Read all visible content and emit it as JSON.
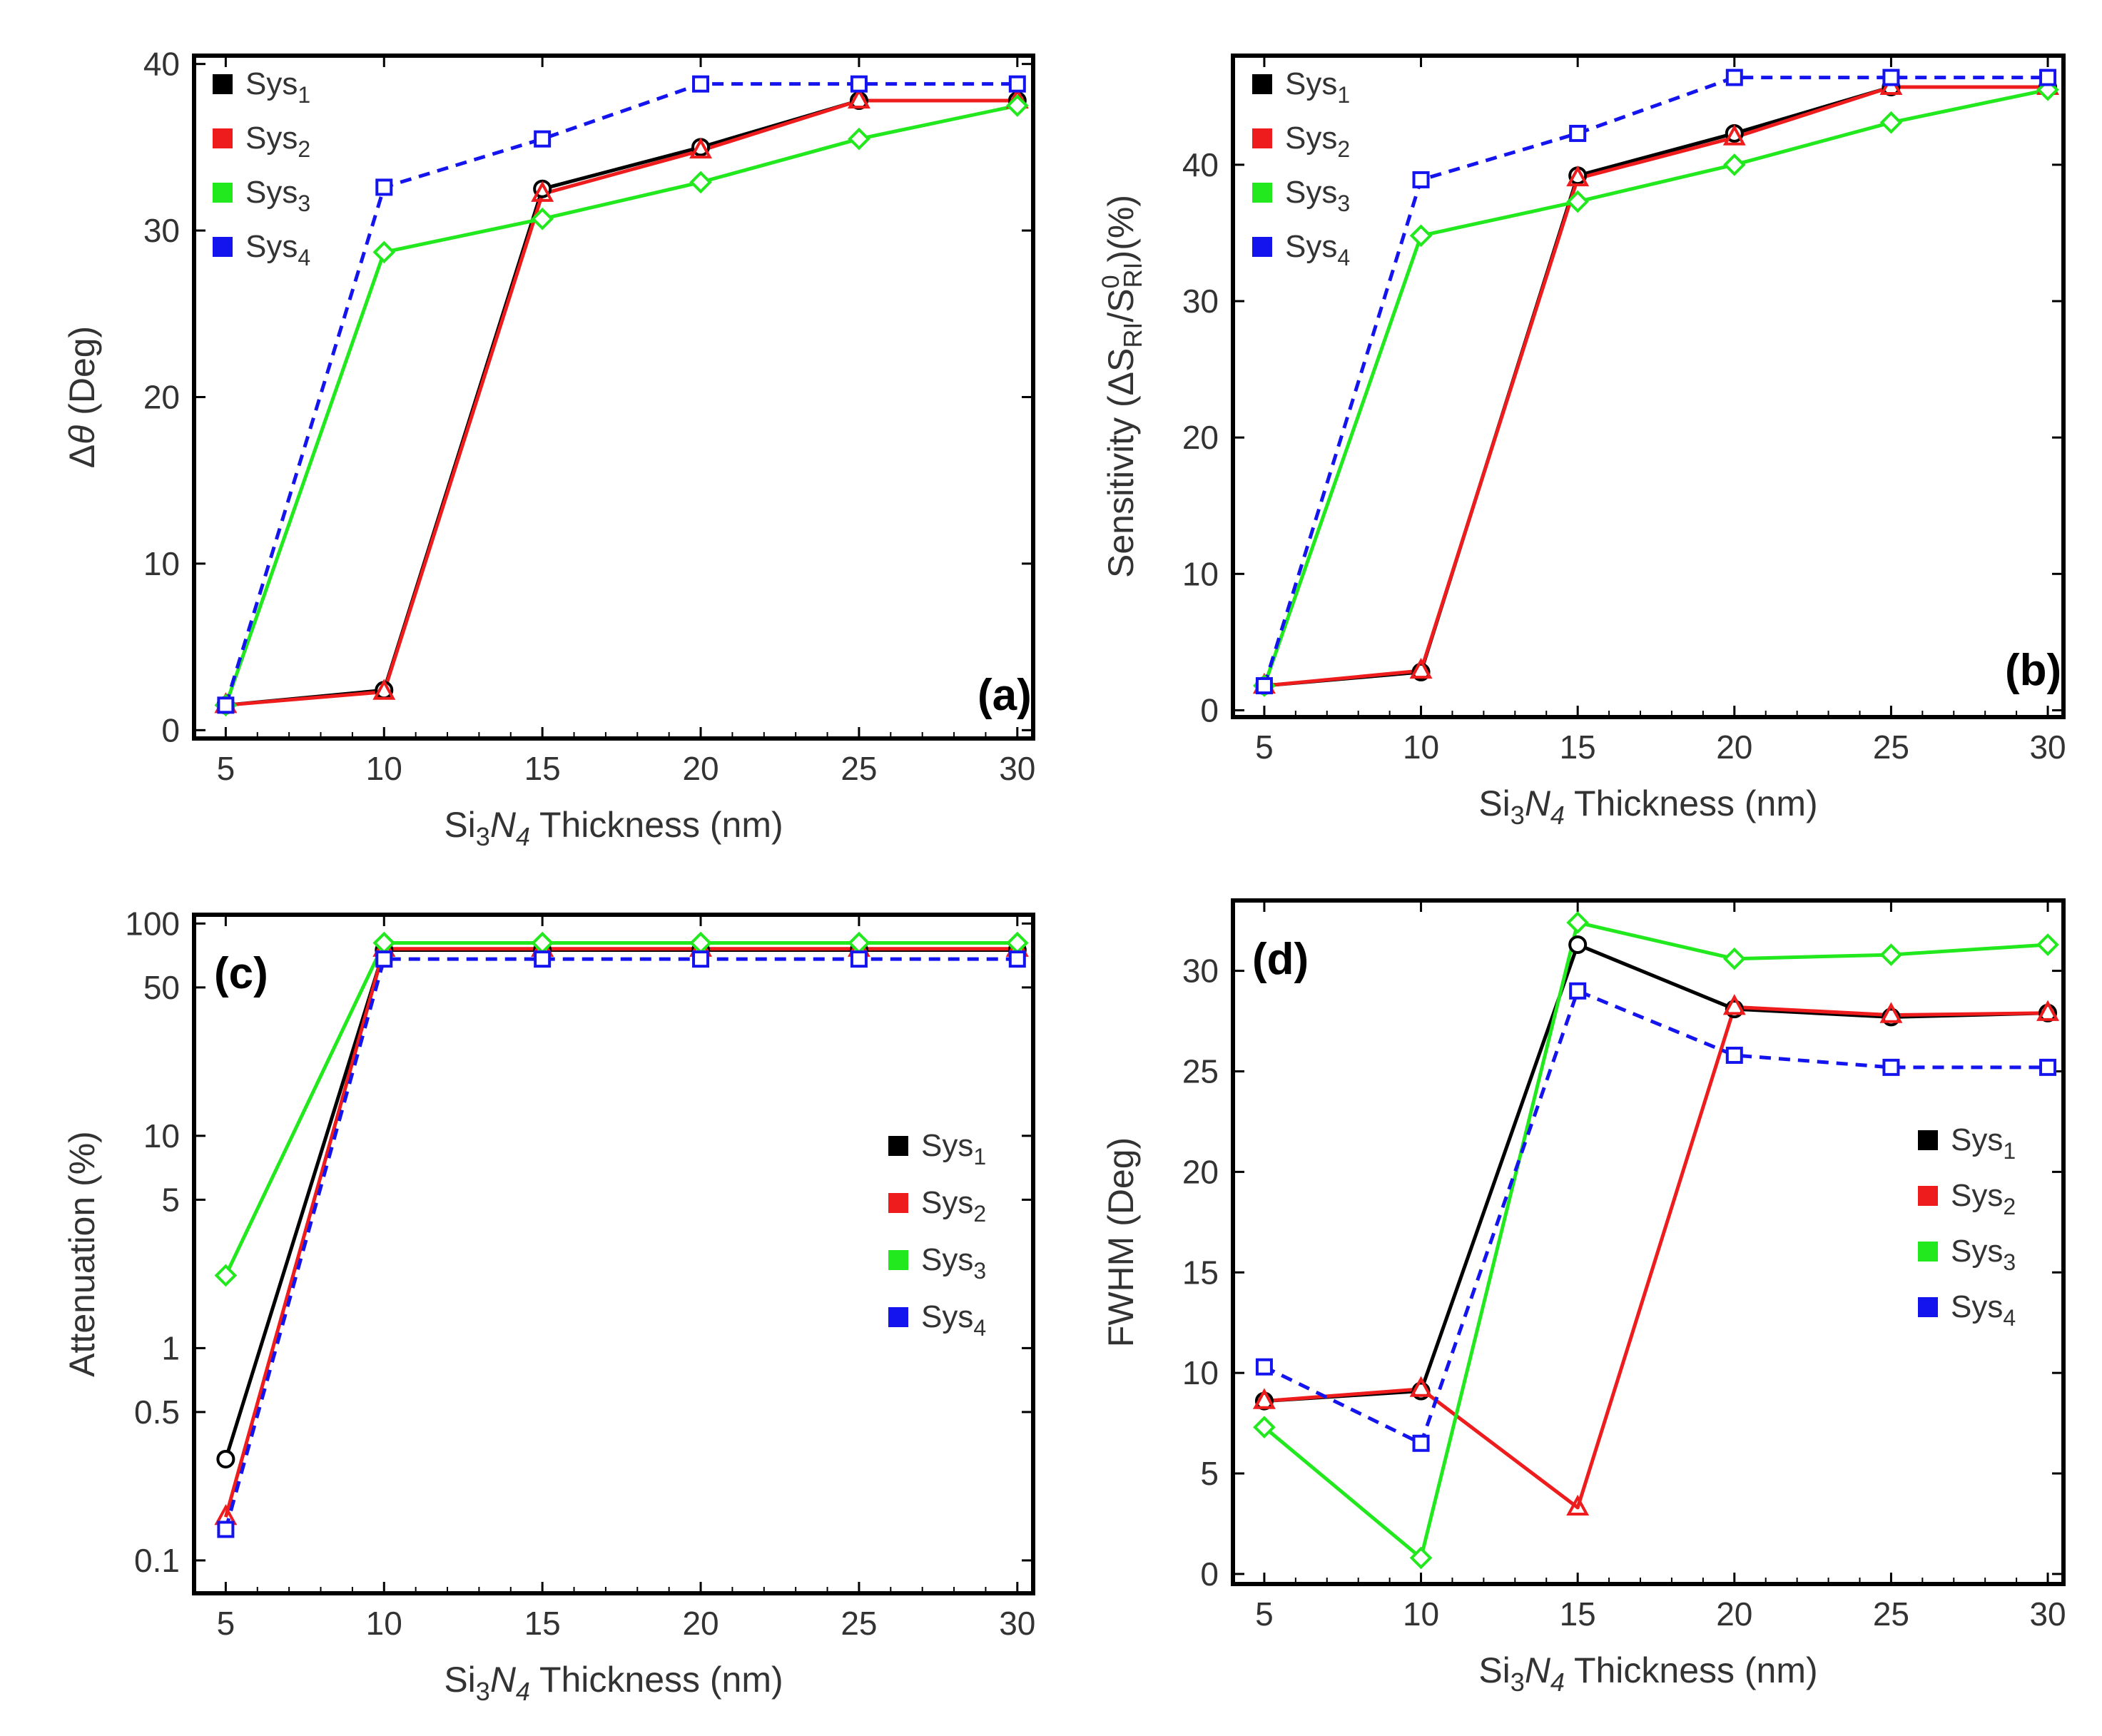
{
  "figure": {
    "colors": {
      "sys1": "#000000",
      "sys2": "#ee1c1c",
      "sys3": "#22e81e",
      "sys4": "#1414ee"
    }
  },
  "chart_data": [
    {
      "panel": "(a)",
      "type": "line",
      "xlabel": "Si3N4 Thickness (nm)",
      "ylabel": "Δθ (Deg)",
      "x": [
        5,
        10,
        15,
        20,
        25,
        30
      ],
      "xlim": [
        4,
        30.5
      ],
      "ylim": [
        -0.5,
        40.5
      ],
      "yscale": "linear",
      "xticks": [
        5,
        10,
        15,
        20,
        25,
        30
      ],
      "yticks": [
        0,
        10,
        20,
        30,
        40
      ],
      "legend_position": "top-left",
      "series": [
        {
          "name": "Sys1",
          "color_key": "sys1",
          "marker": "circle",
          "dashed": false,
          "values": [
            1.5,
            2.4,
            32.5,
            35.0,
            37.8,
            37.8
          ]
        },
        {
          "name": "Sys2",
          "color_key": "sys2",
          "marker": "triangle",
          "dashed": false,
          "values": [
            1.5,
            2.3,
            32.2,
            34.8,
            37.8,
            37.8
          ]
        },
        {
          "name": "Sys3",
          "color_key": "sys3",
          "marker": "diamond",
          "dashed": false,
          "values": [
            1.5,
            28.7,
            30.7,
            32.9,
            35.5,
            37.5
          ]
        },
        {
          "name": "Sys4",
          "color_key": "sys4",
          "marker": "square",
          "dashed": true,
          "values": [
            1.5,
            32.6,
            35.5,
            38.8,
            38.8,
            38.8
          ]
        }
      ]
    },
    {
      "panel": "(b)",
      "type": "line",
      "xlabel": "Si3N4 Thickness (nm)",
      "ylabel": "Sensitivity (ΔSRI/S0RI)(%)",
      "x": [
        5,
        10,
        15,
        20,
        25,
        30
      ],
      "xlim": [
        4,
        30.5
      ],
      "ylim": [
        -0.5,
        48
      ],
      "yscale": "linear",
      "xticks": [
        5,
        10,
        15,
        20,
        25,
        30
      ],
      "yticks": [
        0,
        10,
        20,
        30,
        40
      ],
      "legend_position": "top-left",
      "series": [
        {
          "name": "Sys1",
          "color_key": "sys1",
          "marker": "circle",
          "dashed": false,
          "values": [
            1.8,
            2.8,
            39.2,
            42.3,
            45.7,
            45.7
          ]
        },
        {
          "name": "Sys2",
          "color_key": "sys2",
          "marker": "triangle",
          "dashed": false,
          "values": [
            1.8,
            2.9,
            39.0,
            42.0,
            45.7,
            45.7
          ]
        },
        {
          "name": "Sys3",
          "color_key": "sys3",
          "marker": "diamond",
          "dashed": false,
          "values": [
            1.8,
            34.8,
            37.3,
            40.0,
            43.1,
            45.5
          ]
        },
        {
          "name": "Sys4",
          "color_key": "sys4",
          "marker": "square",
          "dashed": true,
          "values": [
            1.8,
            38.9,
            42.3,
            46.4,
            46.4,
            46.4
          ]
        }
      ]
    },
    {
      "panel": "(c)",
      "type": "line",
      "xlabel": "Si3N4 Thickness (nm)",
      "ylabel": "Attenuation (%)",
      "x": [
        5,
        10,
        15,
        20,
        25,
        30
      ],
      "xlim": [
        4,
        30.5
      ],
      "ylim": [
        0.07,
        110
      ],
      "yscale": "log",
      "xticks": [
        5,
        10,
        15,
        20,
        25,
        30
      ],
      "yticks": [
        0.1,
        0.5,
        1,
        5,
        10,
        50,
        100
      ],
      "ytick_labels": [
        "0.1",
        "0.5",
        "1",
        "5",
        "10",
        "50",
        "100"
      ],
      "legend_position": "center-right",
      "series": [
        {
          "name": "Sys1",
          "color_key": "sys1",
          "marker": "circle",
          "dashed": false,
          "values": [
            0.3,
            75,
            75,
            75,
            75,
            75
          ]
        },
        {
          "name": "Sys2",
          "color_key": "sys2",
          "marker": "triangle",
          "dashed": false,
          "values": [
            0.16,
            76,
            76,
            76,
            76,
            76
          ]
        },
        {
          "name": "Sys3",
          "color_key": "sys3",
          "marker": "diamond",
          "dashed": false,
          "values": [
            2.2,
            81,
            81,
            81,
            81,
            81
          ]
        },
        {
          "name": "Sys4",
          "color_key": "sys4",
          "marker": "square",
          "dashed": true,
          "values": [
            0.14,
            68,
            68,
            68,
            68,
            68
          ]
        }
      ]
    },
    {
      "panel": "(d)",
      "type": "line",
      "xlabel": "Si3N4 Thickness (nm)",
      "ylabel": "FWHM (Deg)",
      "x": [
        5,
        10,
        15,
        20,
        25,
        30
      ],
      "xlim": [
        4,
        30.5
      ],
      "ylim": [
        -0.5,
        33.5
      ],
      "yscale": "linear",
      "xticks": [
        5,
        10,
        15,
        20,
        25,
        30
      ],
      "yticks": [
        0,
        5,
        10,
        15,
        20,
        25,
        30
      ],
      "legend_position": "center-right",
      "series": [
        {
          "name": "Sys1",
          "color_key": "sys1",
          "marker": "circle",
          "dashed": false,
          "values": [
            8.6,
            9.1,
            31.3,
            28.1,
            27.7,
            27.9
          ]
        },
        {
          "name": "Sys2",
          "color_key": "sys2",
          "marker": "triangle",
          "dashed": false,
          "values": [
            8.6,
            9.2,
            3.3,
            28.2,
            27.8,
            27.9
          ]
        },
        {
          "name": "Sys3",
          "color_key": "sys3",
          "marker": "diamond",
          "dashed": false,
          "values": [
            7.3,
            0.8,
            32.4,
            30.6,
            30.8,
            31.3
          ]
        },
        {
          "name": "Sys4",
          "color_key": "sys4",
          "marker": "square",
          "dashed": true,
          "values": [
            10.3,
            6.5,
            29.0,
            25.8,
            25.2,
            25.2
          ]
        }
      ]
    }
  ]
}
